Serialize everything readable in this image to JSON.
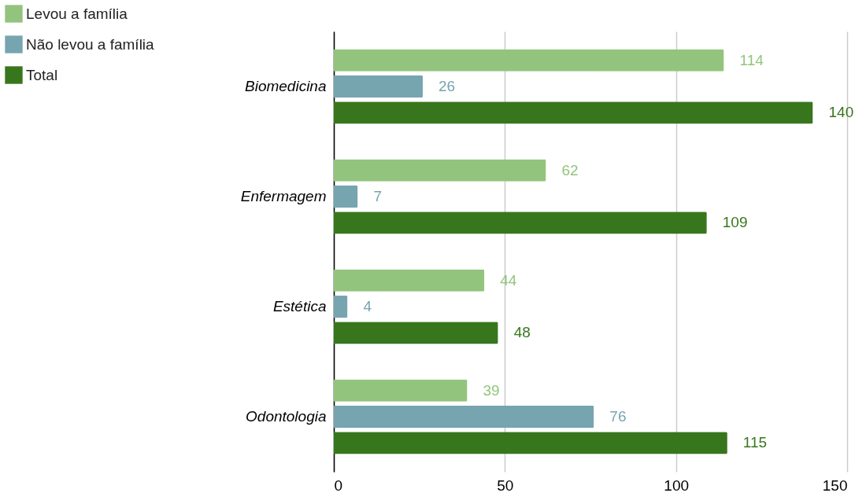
{
  "chart_data": {
    "type": "bar",
    "orientation": "horizontal",
    "categories": [
      "Biomedicina",
      "Enfermagem",
      "Estética",
      "Odontologia"
    ],
    "series": [
      {
        "name": "Levou a família",
        "color": "#93c47d",
        "values": [
          114,
          62,
          44,
          39
        ]
      },
      {
        "name": "Não levou a família",
        "color": "#76a5af",
        "values": [
          26,
          7,
          4,
          76
        ]
      },
      {
        "name": "Total",
        "color": "#38761d",
        "values": [
          140,
          109,
          48,
          115
        ]
      }
    ],
    "xlim": [
      0,
      150
    ],
    "xticks": [
      0,
      50,
      100,
      150
    ],
    "grid": "x",
    "legend": "top left",
    "data_labels": true
  }
}
